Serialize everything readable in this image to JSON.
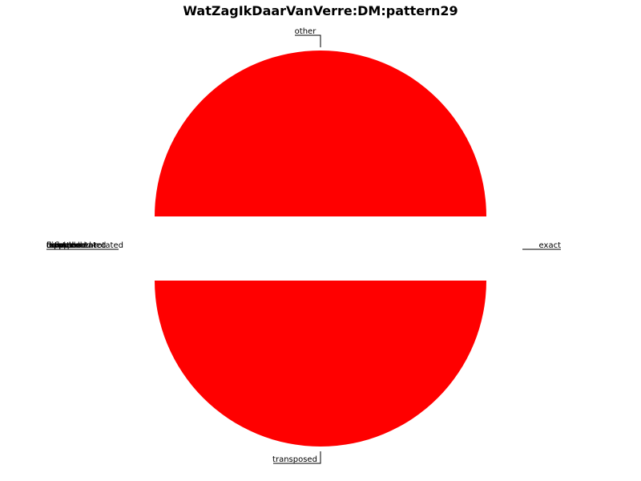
{
  "chart_data": {
    "type": "pie",
    "title": "WatZagIkDaarVanVerre:DM:pattern29",
    "slices": [
      {
        "label": "exact",
        "value": 0,
        "color": "#ff0000"
      },
      {
        "label": "other",
        "value": 1,
        "color": "#ff0000"
      },
      {
        "label": "transposed",
        "value": 1,
        "color": "#ff0000"
      }
    ],
    "overlapping_left_labels": [
      "rotated",
      "transposed-rotated",
      "flipped",
      "flipped-rotated",
      "complement",
      "inverted",
      "reflected",
      "combined"
    ],
    "overlapping_left_values": [
      0,
      0,
      0,
      0,
      0,
      0,
      0,
      0
    ],
    "slice_color": "#ff0000"
  }
}
